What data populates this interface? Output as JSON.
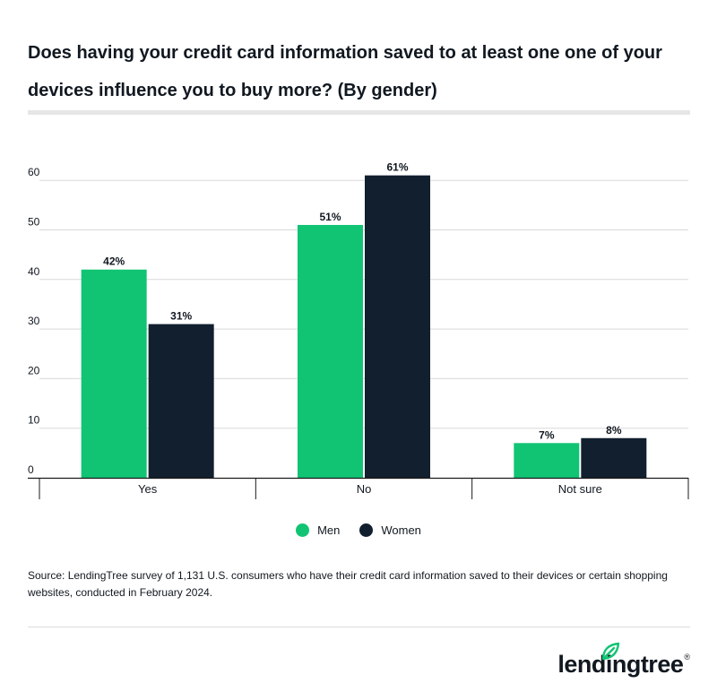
{
  "title": "Does having your credit card information saved to at least one one of your devices influence you to buy more? (By gender)",
  "chart_data": {
    "type": "bar",
    "categories": [
      "Yes",
      "No",
      "Not sure"
    ],
    "series": [
      {
        "name": "Men",
        "values": [
          42,
          51,
          7
        ],
        "labels": [
          "42%",
          "51%",
          "7%"
        ],
        "color": "#10c473"
      },
      {
        "name": "Women",
        "values": [
          31,
          61,
          8
        ],
        "labels": [
          "31%",
          "61%",
          "8%"
        ],
        "color": "#111f2f"
      }
    ],
    "yticks": [
      0,
      10,
      20,
      30,
      40,
      50,
      60
    ],
    "ylim": [
      0,
      60
    ],
    "grid": true,
    "legend_position": "bottom-center"
  },
  "legend": [
    {
      "label": "Men",
      "color": "#10c473"
    },
    {
      "label": "Women",
      "color": "#111f2f"
    }
  ],
  "source": "Source: LendingTree survey of 1,131 U.S. consumers who have their credit card information saved to their devices or certain shopping websites, conducted in February 2024.",
  "logo": {
    "text": "lendingtree",
    "mark": "®",
    "icon": "leaf-icon",
    "accent": "#10c473"
  }
}
